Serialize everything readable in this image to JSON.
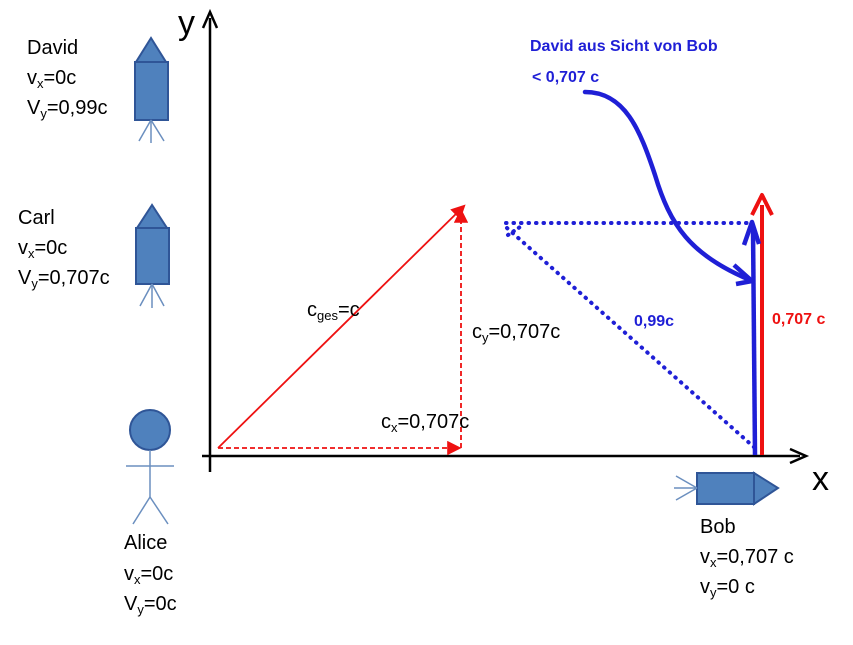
{
  "axes": {
    "x_label": "x",
    "y_label": "y"
  },
  "people": {
    "david": {
      "name": "David",
      "vx_sym": "v",
      "vx_sub": "x",
      "vx_val": "=0c",
      "vy_sym": "V",
      "vy_sub": "y",
      "vy_val": "=0,99c"
    },
    "carl": {
      "name": "Carl",
      "vx_sym": "v",
      "vx_sub": "x",
      "vx_val": "=0c",
      "vy_sym": "V",
      "vy_sub": "y",
      "vy_val": "=0,707c"
    },
    "alice": {
      "name": "Alice",
      "vx_sym": "v",
      "vx_sub": "x",
      "vx_val": "=0c",
      "vy_sym": "V",
      "vy_sub": "y",
      "vy_val": "=0c"
    },
    "bob": {
      "name": "Bob",
      "vx_sym": "v",
      "vx_sub": "x",
      "vx_val": "=0,707 c",
      "vy_sym": "v",
      "vy_sub": "y",
      "vy_val": "=0 c"
    }
  },
  "vectors": {
    "cges_sym": "c",
    "cges_sub": "ges",
    "cges_val": "=c",
    "cy_sym": "c",
    "cy_sub": "y",
    "cy_val": "=0,707c",
    "cx_sym": "c",
    "cx_sub": "x",
    "cx_val": "=0,707c"
  },
  "annotations": {
    "david_view_title": "David aus Sicht von Bob",
    "david_view_speed": "< 0,707 c",
    "blue_diag": "0,99c",
    "red_vert": "0,707 c"
  },
  "colors": {
    "red": "#ee1111",
    "blue": "#1f1fd6",
    "shape_fill": "#4f81bd",
    "shape_stroke": "#2f5597",
    "figure_line": "#6b8fbf"
  }
}
